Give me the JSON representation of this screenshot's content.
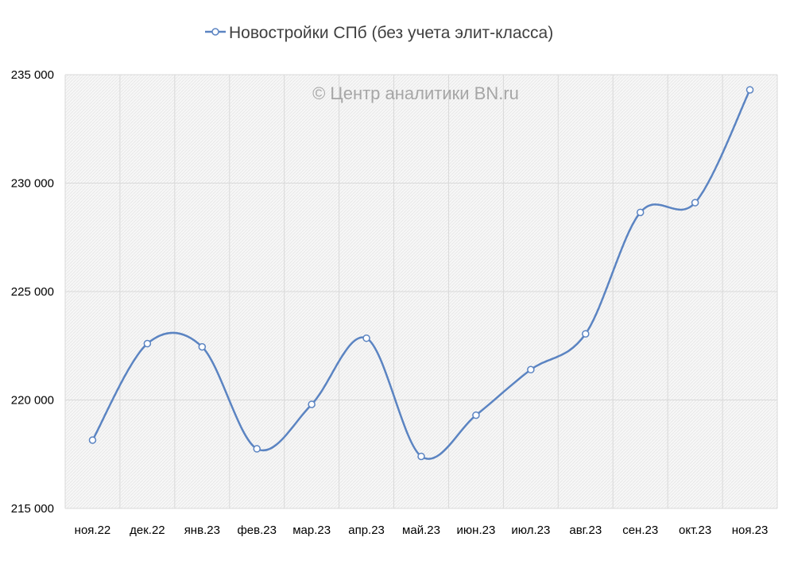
{
  "chart_data": {
    "type": "line",
    "categories": [
      "ноя.22",
      "дек.22",
      "янв.23",
      "фев.23",
      "мар.23",
      "апр.23",
      "май.23",
      "июн.23",
      "июл.23",
      "авг.23",
      "сен.23",
      "окт.23",
      "ноя.23"
    ],
    "series": [
      {
        "name": "Новостройки СПб (без учета элит-класса)",
        "values": [
          218150,
          222600,
          222450,
          217750,
          219800,
          222850,
          217400,
          219300,
          221400,
          223050,
          228650,
          229100,
          234300
        ]
      }
    ],
    "ylim": [
      215000,
      235000
    ],
    "yticks": [
      215000,
      220000,
      225000,
      230000,
      235000
    ],
    "ytick_labels": [
      "215 000",
      "220 000",
      "225 000",
      "230 000",
      "235 000"
    ],
    "title": "",
    "xlabel": "",
    "ylabel": "",
    "legend_position": "top-center",
    "watermark": "© Центр аналитики BN.ru",
    "grid": true,
    "smooth": true,
    "colors": {
      "line": "#5b84c2",
      "marker_fill": "#ffffff",
      "gridline": "#d9d9d9",
      "plot_background": "#f4f4f4",
      "watermark": "#a6a6a6"
    }
  }
}
